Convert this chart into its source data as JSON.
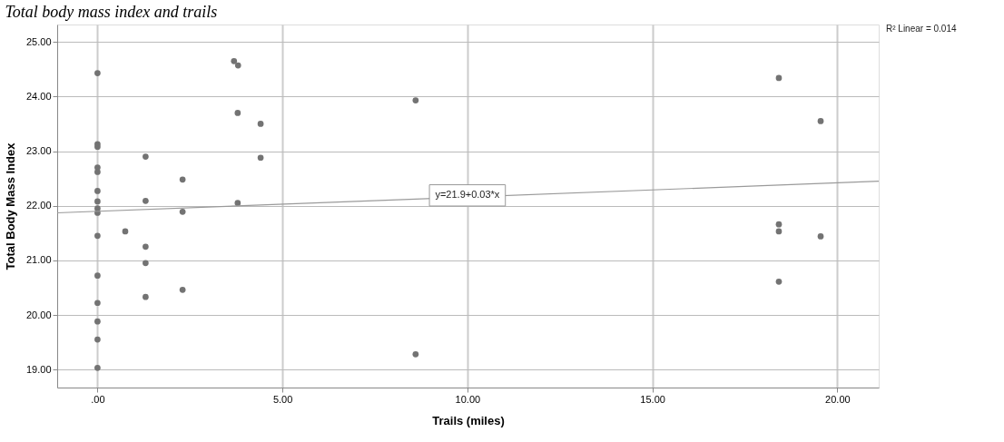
{
  "chart_data": {
    "type": "scatter",
    "title": "Total body mass index and trails",
    "xlabel": "Trails (miles)",
    "ylabel": "Total Body Mass Index",
    "xlim": [
      -1.09,
      21.12
    ],
    "ylim": [
      18.67,
      25.32
    ],
    "xticks": [
      {
        "value": 0,
        "label": ".00"
      },
      {
        "value": 5,
        "label": "5.00"
      },
      {
        "value": 10,
        "label": "10.00"
      },
      {
        "value": 15,
        "label": "15.00"
      },
      {
        "value": 20,
        "label": "20.00"
      }
    ],
    "yticks": [
      {
        "value": 19,
        "label": "19.00"
      },
      {
        "value": 20,
        "label": "20.00"
      },
      {
        "value": 21,
        "label": "21.00"
      },
      {
        "value": 22,
        "label": "22.00"
      },
      {
        "value": 23,
        "label": "23.00"
      },
      {
        "value": 24,
        "label": "24.00"
      },
      {
        "value": 25,
        "label": "25.00"
      }
    ],
    "grid": true,
    "series": [
      {
        "color": "#737373",
        "marker": "circle",
        "x": [
          0,
          3.69,
          3.8,
          3.79,
          4.41,
          0,
          0,
          1.3,
          4.41,
          0,
          0,
          2.3,
          0,
          0,
          1.3,
          3.79,
          0,
          0,
          2.3,
          0.75,
          0,
          1.3,
          1.3,
          0,
          2.3,
          1.3,
          0,
          0,
          0,
          0,
          8.6,
          8.6,
          18.42,
          19.55,
          18.42,
          18.42,
          19.55,
          18.42
        ],
        "values": [
          24.43,
          24.65,
          24.57,
          23.7,
          23.5,
          23.13,
          23.08,
          22.9,
          22.88,
          22.7,
          22.62,
          22.48,
          22.27,
          22.08,
          22.09,
          22.05,
          21.95,
          21.87,
          21.89,
          21.53,
          21.45,
          21.25,
          20.95,
          20.72,
          20.46,
          20.33,
          20.22,
          19.88,
          19.55,
          19.03,
          23.93,
          19.28,
          24.34,
          23.55,
          21.66,
          21.53,
          21.44,
          20.61
        ]
      },
      {
        "type": "line",
        "color": "#9a9a9a",
        "line_style": "solid",
        "x": [
          -1.09,
          21.12
        ],
        "values": [
          21.87,
          22.45
        ]
      }
    ],
    "annotations": [
      {
        "text": "y=21.9+0.03*x",
        "x": 10.0,
        "y": 22.19
      },
      "R² Linear = 0.014"
    ]
  }
}
